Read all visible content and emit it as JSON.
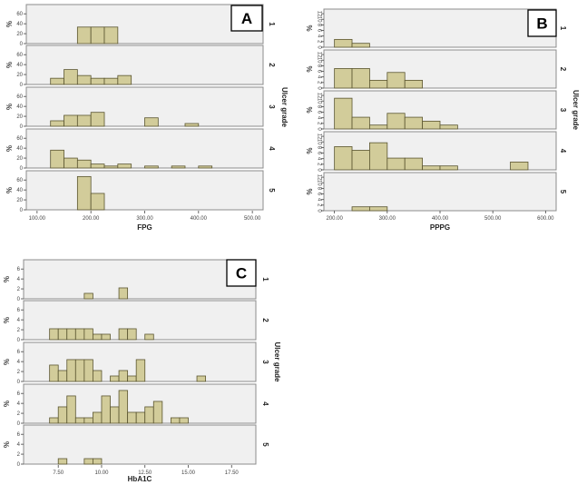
{
  "chart_data": [
    {
      "type": "bar",
      "panel_label": "A",
      "title": "",
      "xlabel": "FPG",
      "ylabel": "%",
      "facet_label": "Ulcer grade",
      "xlim": [
        80,
        520
      ],
      "ylim": [
        0,
        75
      ],
      "xticks": [
        100,
        200,
        300,
        400,
        500
      ],
      "xtick_labels": [
        "100.00",
        "200.00",
        "300.00",
        "400.00",
        "500.00"
      ],
      "yticks": [
        0,
        20,
        40,
        60
      ],
      "ytick_labels": [
        "0",
        "20",
        "40",
        "60"
      ],
      "bin_width": 25,
      "facets": [
        {
          "name": "1",
          "bins": [
            [
              175,
              33.3
            ],
            [
              200,
              33.3
            ],
            [
              225,
              33.3
            ]
          ]
        },
        {
          "name": "2",
          "bins": [
            [
              125,
              12.5
            ],
            [
              150,
              30
            ],
            [
              175,
              18
            ],
            [
              200,
              12.5
            ],
            [
              225,
              12.5
            ],
            [
              250,
              18
            ]
          ]
        },
        {
          "name": "3",
          "bins": [
            [
              125,
              11
            ],
            [
              150,
              22
            ],
            [
              175,
              22
            ],
            [
              200,
              28
            ],
            [
              300,
              17
            ],
            [
              375,
              5.5
            ]
          ]
        },
        {
          "name": "4",
          "bins": [
            [
              125,
              36
            ],
            [
              150,
              20
            ],
            [
              175,
              16
            ],
            [
              200,
              8
            ],
            [
              225,
              4
            ],
            [
              250,
              8
            ],
            [
              300,
              4
            ],
            [
              350,
              4
            ],
            [
              400,
              4
            ]
          ]
        },
        {
          "name": "5",
          "bins": [
            [
              175,
              67
            ],
            [
              200,
              33
            ]
          ]
        }
      ]
    },
    {
      "type": "bar",
      "panel_label": "B",
      "title": "",
      "xlabel": "PPPG",
      "ylabel": "%",
      "facet_label": "Ulcer grade",
      "xlim": [
        180,
        620
      ],
      "ylim": [
        0,
        13
      ],
      "xticks": [
        200,
        300,
        400,
        500,
        600
      ],
      "xtick_labels": [
        "200.00",
        "300.00",
        "400.00",
        "500.00",
        "600.00"
      ],
      "yticks": [
        0,
        2,
        4,
        6,
        8,
        10,
        12
      ],
      "ytick_labels": [
        "0",
        "2",
        "4",
        "6",
        "8",
        "10",
        "12"
      ],
      "bin_width": 33.33,
      "facets": [
        {
          "name": "1",
          "bins": [
            [
              200,
              2.8
            ],
            [
              233.33,
              1.4
            ]
          ]
        },
        {
          "name": "2",
          "bins": [
            [
              200,
              7
            ],
            [
              233.33,
              7
            ],
            [
              266.67,
              2.8
            ],
            [
              300,
              5.6
            ],
            [
              333.33,
              2.8
            ]
          ]
        },
        {
          "name": "3",
          "bins": [
            [
              200,
              11
            ],
            [
              233.33,
              4.2
            ],
            [
              266.67,
              1.4
            ],
            [
              300,
              5.6
            ],
            [
              333.33,
              4.2
            ],
            [
              366.67,
              2.8
            ],
            [
              400,
              1.4
            ]
          ]
        },
        {
          "name": "4",
          "bins": [
            [
              200,
              8.3
            ],
            [
              233.33,
              7
            ],
            [
              266.67,
              9.7
            ],
            [
              300,
              4.2
            ],
            [
              333.33,
              4.2
            ],
            [
              366.67,
              1.4
            ],
            [
              400,
              1.4
            ],
            [
              533.33,
              2.8
            ]
          ]
        },
        {
          "name": "5",
          "bins": [
            [
              233.33,
              1.4
            ],
            [
              266.67,
              1.4
            ]
          ]
        }
      ]
    },
    {
      "type": "bar",
      "panel_label": "C",
      "title": "",
      "xlabel": "HbA1C",
      "ylabel": "%",
      "facet_label": "Ulcer grade",
      "xlim": [
        5.5,
        18.9
      ],
      "ylim": [
        0,
        7.5
      ],
      "xticks": [
        7.5,
        10,
        12.5,
        15,
        17.5
      ],
      "xtick_labels": [
        "7.50",
        "10.00",
        "12.50",
        "15.00",
        "17.50"
      ],
      "yticks": [
        0,
        2,
        4,
        6
      ],
      "ytick_labels": [
        "0",
        "2",
        "4",
        "6"
      ],
      "bin_width": 0.5,
      "facets": [
        {
          "name": "1",
          "bins": [
            [
              9.0,
              1.1
            ],
            [
              11.0,
              2.2
            ]
          ]
        },
        {
          "name": "2",
          "bins": [
            [
              7.0,
              2.2
            ],
            [
              7.5,
              2.2
            ],
            [
              8.0,
              2.2
            ],
            [
              8.5,
              2.2
            ],
            [
              9.0,
              2.2
            ],
            [
              9.5,
              1.1
            ],
            [
              10.0,
              1.1
            ],
            [
              11.0,
              2.2
            ],
            [
              11.5,
              2.2
            ],
            [
              12.5,
              1.1
            ]
          ]
        },
        {
          "name": "3",
          "bins": [
            [
              7.0,
              3.3
            ],
            [
              7.5,
              2.2
            ],
            [
              8.0,
              4.4
            ],
            [
              8.5,
              4.4
            ],
            [
              9.0,
              4.4
            ],
            [
              9.5,
              2.2
            ],
            [
              10.5,
              1.1
            ],
            [
              11.0,
              2.2
            ],
            [
              11.5,
              1.1
            ],
            [
              12.0,
              4.4
            ],
            [
              15.5,
              1.1
            ]
          ]
        },
        {
          "name": "4",
          "bins": [
            [
              7.0,
              1.1
            ],
            [
              7.5,
              3.3
            ],
            [
              8.0,
              5.5
            ],
            [
              8.5,
              1.1
            ],
            [
              9.0,
              1.1
            ],
            [
              9.5,
              2.2
            ],
            [
              10.0,
              5.5
            ],
            [
              10.5,
              3.3
            ],
            [
              11.0,
              6.6
            ],
            [
              11.5,
              2.2
            ],
            [
              12.0,
              2.2
            ],
            [
              12.5,
              3.3
            ],
            [
              13.0,
              4.4
            ],
            [
              14.0,
              1.1
            ],
            [
              14.5,
              1.1
            ]
          ]
        },
        {
          "name": "5",
          "bins": [
            [
              7.5,
              1.1
            ],
            [
              9.0,
              1.1
            ],
            [
              9.5,
              1.1
            ]
          ]
        }
      ]
    }
  ]
}
